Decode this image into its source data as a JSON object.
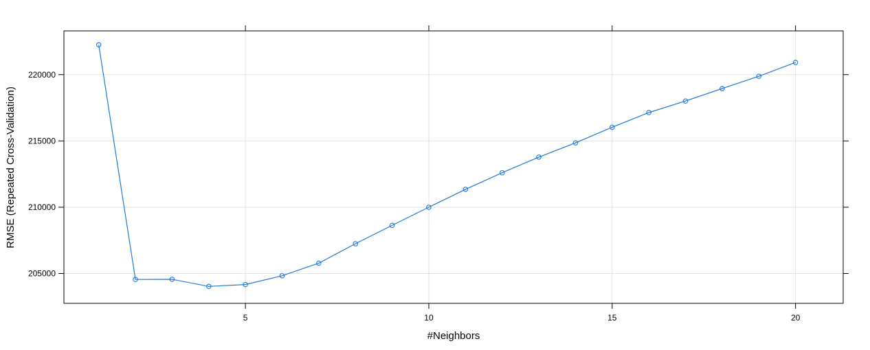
{
  "chart_data": {
    "type": "line",
    "title": "",
    "xlabel": "#Neighbors",
    "ylabel": "RMSE (Repeated Cross-Validation)",
    "xlim": [
      0.05,
      21.3
    ],
    "ylim": [
      202750,
      223300
    ],
    "x_ticks": [
      5,
      10,
      15,
      20
    ],
    "y_ticks": [
      205000,
      210000,
      215000,
      220000
    ],
    "grid": true,
    "series_color": "#1f78d4",
    "grid_color": "#e2e2e2",
    "x": [
      1,
      2,
      3,
      4,
      5,
      6,
      7,
      8,
      9,
      10,
      11,
      12,
      13,
      14,
      15,
      16,
      17,
      18,
      19,
      20
    ],
    "values": [
      222250,
      204550,
      204560,
      204030,
      204170,
      204830,
      205780,
      207250,
      208630,
      210000,
      211350,
      212600,
      213780,
      214850,
      216030,
      217140,
      218010,
      218950,
      219880,
      220920
    ]
  }
}
